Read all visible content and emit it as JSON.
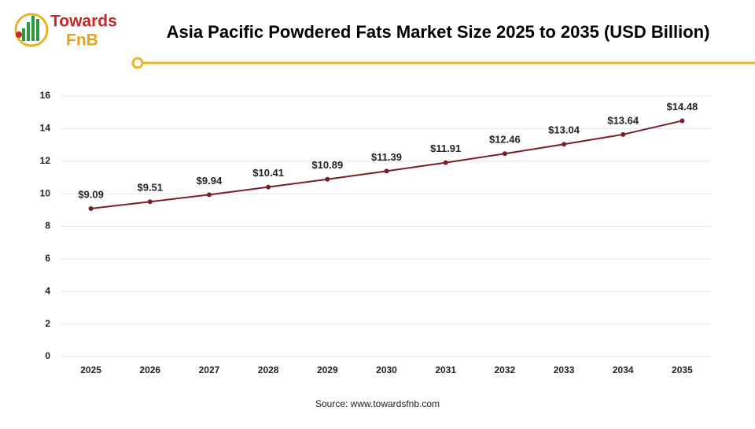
{
  "logo": {
    "line1": "Towards",
    "line2": "FnB"
  },
  "chart_data": {
    "type": "line",
    "title": "Asia Pacific Powdered Fats Market Size 2025 to 2035 (USD Billion)",
    "categories": [
      "2025",
      "2026",
      "2027",
      "2028",
      "2029",
      "2030",
      "2031",
      "2032",
      "2033",
      "2034",
      "2035"
    ],
    "series": [
      {
        "name": "Market Size",
        "color": "#7b1e2b",
        "values": [
          9.09,
          9.51,
          9.94,
          10.41,
          10.89,
          11.39,
          11.91,
          12.46,
          13.04,
          13.64,
          14.48
        ],
        "value_labels": [
          "$9.09",
          "$9.51",
          "$9.94",
          "$10.41",
          "$10.89",
          "$11.39",
          "$11.91",
          "$12.46",
          "$13.04",
          "$13.64",
          "$14.48"
        ]
      }
    ],
    "ylim": [
      0,
      16
    ],
    "yticks": [
      0,
      2,
      4,
      6,
      8,
      10,
      12,
      14,
      16
    ],
    "grid": true,
    "source": "Source: www.towardsfnb.com"
  }
}
